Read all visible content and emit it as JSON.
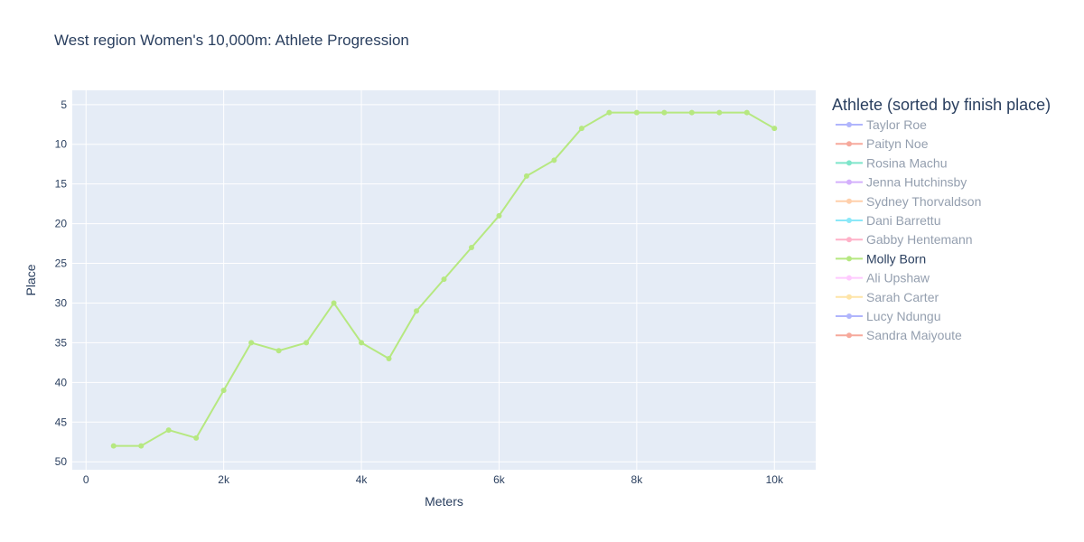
{
  "chart_data": {
    "type": "line",
    "title": "West region Women's 10,000m: Athlete Progression",
    "xlabel": "Meters",
    "ylabel": "Place",
    "xlim": [
      -200,
      10600
    ],
    "ylim": [
      51,
      3.2
    ],
    "y_reversed": true,
    "x_ticks": [
      0,
      2000,
      4000,
      6000,
      8000,
      10000
    ],
    "x_tick_labels": [
      "0",
      "2k",
      "4k",
      "6k",
      "8k",
      "10k"
    ],
    "y_ticks": [
      5,
      10,
      15,
      20,
      25,
      30,
      35,
      40,
      45,
      50
    ],
    "y_tick_labels": [
      "5",
      "10",
      "15",
      "20",
      "25",
      "30",
      "35",
      "40",
      "45",
      "50"
    ],
    "grid": true,
    "legend_title": "Athlete (sorted by finish place)",
    "legend_position": "right",
    "series": [
      {
        "name": "Taylor Roe",
        "color": "#636efa",
        "visible": false,
        "x": [],
        "y": []
      },
      {
        "name": "Paityn Noe",
        "color": "#ef553b",
        "visible": false,
        "x": [],
        "y": []
      },
      {
        "name": "Rosina Machu",
        "color": "#00cc96",
        "visible": false,
        "x": [],
        "y": []
      },
      {
        "name": "Jenna Hutchinsby",
        "color": "#ab63fa",
        "visible": false,
        "x": [],
        "y": []
      },
      {
        "name": "Sydney Thorvaldson",
        "color": "#ffa15a",
        "visible": false,
        "x": [],
        "y": []
      },
      {
        "name": "Dani Barrettu",
        "color": "#19d3f3",
        "visible": false,
        "x": [],
        "y": []
      },
      {
        "name": "Gabby Hentemann",
        "color": "#ff6692",
        "visible": false,
        "x": [],
        "y": []
      },
      {
        "name": "Molly Born",
        "color": "#b6e880",
        "visible": true,
        "x": [
          400,
          800,
          1200,
          1600,
          2000,
          2400,
          2800,
          3200,
          3600,
          4000,
          4400,
          4800,
          5200,
          5600,
          6000,
          6400,
          6800,
          7200,
          7600,
          8000,
          8400,
          8800,
          9200,
          9600,
          10000
        ],
        "y": [
          48,
          48,
          46,
          47,
          41,
          35,
          36,
          35,
          30,
          35,
          37,
          31,
          27,
          23,
          19,
          14,
          12,
          8,
          6,
          6,
          6,
          6,
          6,
          6,
          8
        ]
      },
      {
        "name": "Ali Upshaw",
        "color": "#ff97ff",
        "visible": false,
        "x": [],
        "y": []
      },
      {
        "name": "Sarah Carter",
        "color": "#fecb52",
        "visible": false,
        "x": [],
        "y": []
      },
      {
        "name": "Lucy Ndungu",
        "color": "#636efa",
        "visible": false,
        "x": [],
        "y": []
      },
      {
        "name": "Sandra Maiyoute",
        "color": "#ef553b",
        "visible": false,
        "x": [],
        "y": []
      }
    ]
  }
}
